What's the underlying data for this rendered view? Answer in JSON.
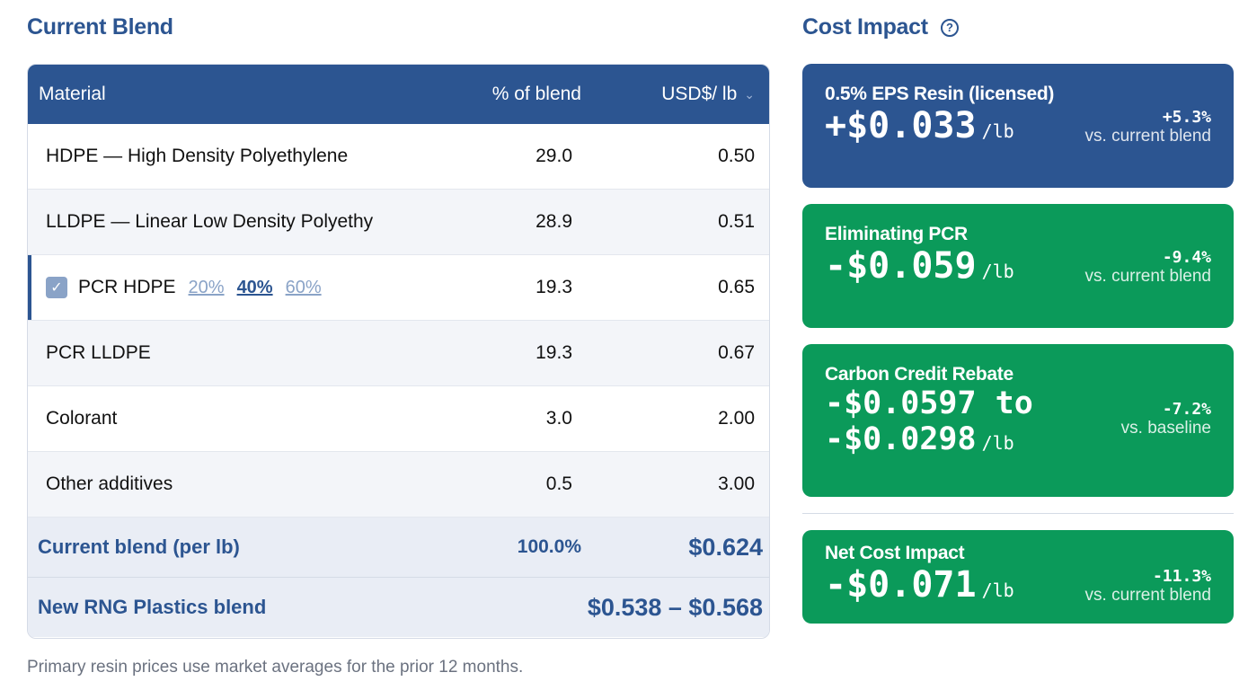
{
  "left_title": "Current Blend",
  "right_title": "Cost Impact",
  "help_icon": "?",
  "table": {
    "headers": {
      "material": "Material",
      "pct": "% of blend",
      "price": "USD$/ lb"
    },
    "rows": [
      {
        "material": "HDPE — High Density Polyethylene",
        "pct": "29.0",
        "price": "0.50"
      },
      {
        "material": "LLDPE — Linear Low Density Polyethy",
        "pct": "28.9",
        "price": "0.51"
      },
      {
        "material": "PCR HDPE",
        "pct": "19.3",
        "price": "0.65",
        "options": [
          "20%",
          "40%",
          "60%"
        ],
        "selected_option": "40%"
      },
      {
        "material": "PCR LLDPE",
        "pct": "19.3",
        "price": "0.67"
      },
      {
        "material": "Colorant",
        "pct": "3.0",
        "price": "2.00"
      },
      {
        "material": "Other additives",
        "pct": "0.5",
        "price": "3.00"
      }
    ],
    "footer": {
      "label": "Current blend (per lb)",
      "pct": "100.0%",
      "price": "$0.624"
    },
    "footer2": {
      "label": "New RNG Plastics blend",
      "range": "$0.538 – $0.568"
    }
  },
  "note": "Primary resin prices use market averages for the prior 12 months.",
  "cards": [
    {
      "title": "0.5% EPS Resin (licensed)",
      "value": "+$0.033",
      "unit": "/lb",
      "pct": "+5.3%",
      "vs": "vs. current blend",
      "color": "#2c5591"
    },
    {
      "title": "Eliminating PCR",
      "value": "-$0.059",
      "unit": "/lb",
      "pct": "-9.4%",
      "vs": "vs. current blend",
      "color": "#0b9a5a"
    },
    {
      "title": "Carbon Credit Rebate",
      "value_line1": "-$0.0597 to",
      "value_line2": "-$0.0298",
      "unit": "/lb",
      "pct": "-7.2%",
      "vs": "vs. baseline",
      "color": "#0b9a5a"
    },
    {
      "title": "Net Cost Impact",
      "value": "-$0.071",
      "unit": "/lb",
      "pct": "-11.3%",
      "vs": "vs. current blend",
      "color": "#0b9a5a"
    }
  ]
}
